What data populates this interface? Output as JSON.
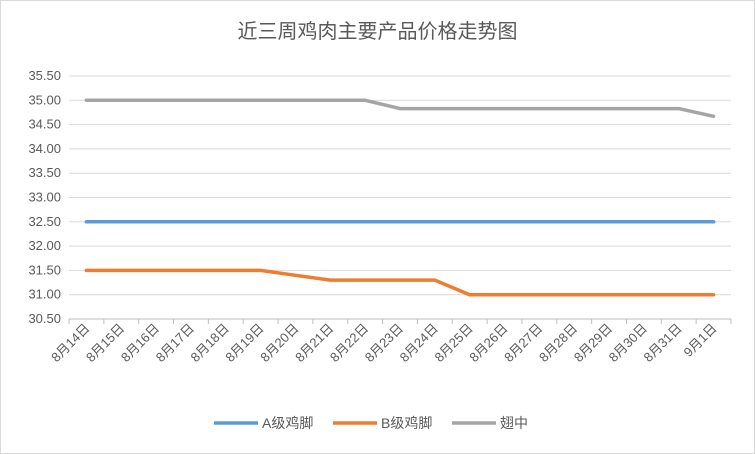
{
  "chart_data": {
    "type": "line",
    "title": "近三周鸡肉主要产品价格走势图",
    "xlabel": "",
    "ylabel": "",
    "categories": [
      "8月14日",
      "8月15日",
      "8月16日",
      "8月17日",
      "8月18日",
      "8月19日",
      "8月20日",
      "8月21日",
      "8月22日",
      "8月23日",
      "8月24日",
      "8月25日",
      "8月26日",
      "8月27日",
      "8月28日",
      "8月29日",
      "8月30日",
      "8月31日",
      "9月1日"
    ],
    "ylim": [
      30.5,
      35.5
    ],
    "yticks": [
      "30.50",
      "31.00",
      "31.50",
      "32.00",
      "32.50",
      "33.00",
      "33.50",
      "34.00",
      "34.50",
      "35.00",
      "35.50"
    ],
    "grid": true,
    "legend": "bottom",
    "series": [
      {
        "name": "A级鸡脚",
        "color": "#5b9bd5",
        "values": [
          32.5,
          32.5,
          32.5,
          32.5,
          32.5,
          32.5,
          32.5,
          32.5,
          32.5,
          32.5,
          32.5,
          32.5,
          32.5,
          32.5,
          32.5,
          32.5,
          32.5,
          32.5,
          32.5
        ]
      },
      {
        "name": "B级鸡脚",
        "color": "#ed7d31",
        "values": [
          31.5,
          31.5,
          31.5,
          31.5,
          31.5,
          31.5,
          31.4,
          31.3,
          31.3,
          31.3,
          31.3,
          31.0,
          31.0,
          31.0,
          31.0,
          31.0,
          31.0,
          31.0,
          31.0
        ]
      },
      {
        "name": "翅中",
        "color": "#a5a5a5",
        "values": [
          35.0,
          35.0,
          35.0,
          35.0,
          35.0,
          35.0,
          35.0,
          35.0,
          35.0,
          34.83,
          34.83,
          34.83,
          34.83,
          34.83,
          34.83,
          34.83,
          34.83,
          34.83,
          34.67
        ]
      }
    ]
  }
}
